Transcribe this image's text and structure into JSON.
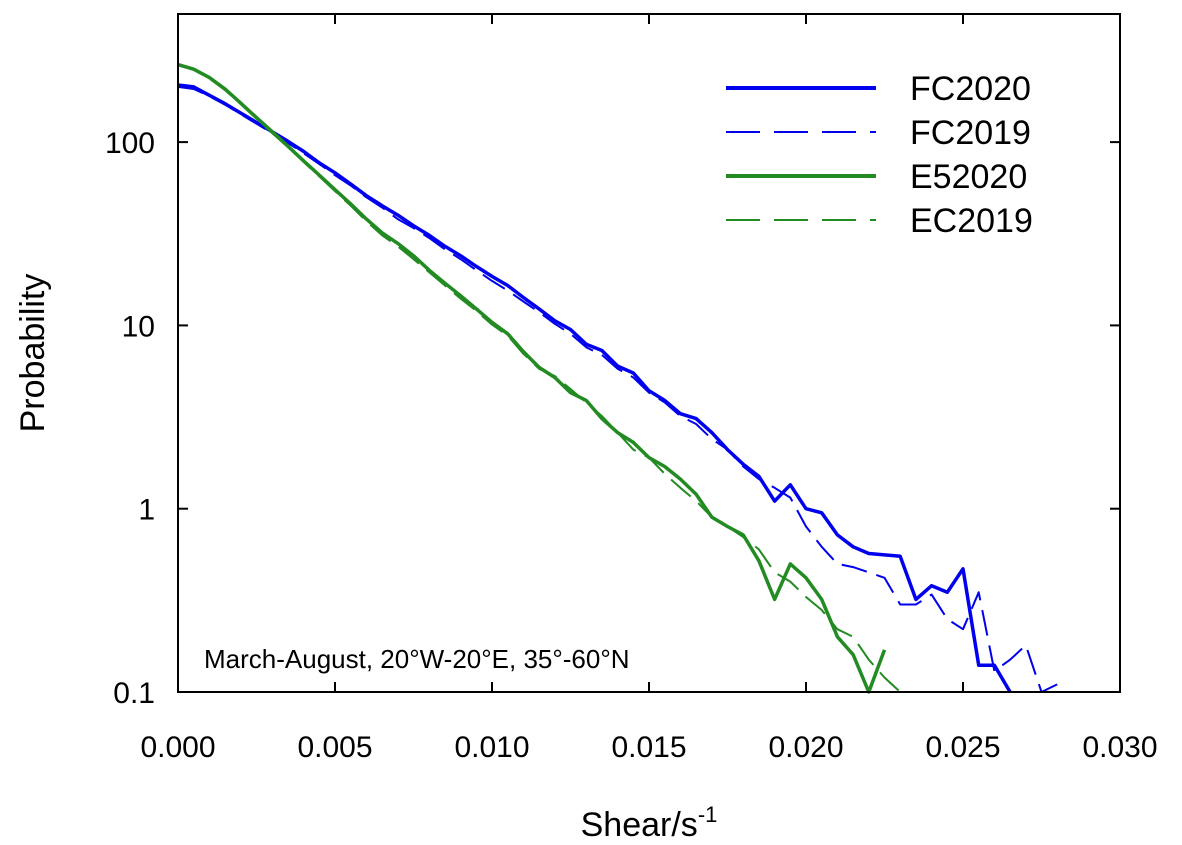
{
  "chart_data": {
    "type": "line",
    "xlabel": "Shear/s",
    "xlabel_superscript": "-1",
    "ylabel": "Probability",
    "annotation": "March-August, 20°W-20°E, 35°-60°N",
    "xlim": [
      0,
      0.03
    ],
    "ylim": [
      0.1,
      500
    ],
    "yscale": "log",
    "grid": false,
    "legend_position": "top-right",
    "x_ticks": [
      "0.000",
      "0.005",
      "0.010",
      "0.015",
      "0.020",
      "0.025",
      "0.030"
    ],
    "x_tick_values": [
      0,
      0.005,
      0.01,
      0.015,
      0.02,
      0.025,
      0.03
    ],
    "y_ticks": [
      "0.1",
      "1",
      "10",
      "100"
    ],
    "y_tick_values": [
      0.1,
      1,
      10,
      100
    ],
    "series": [
      {
        "name": "FC2020",
        "color": "#0000ee",
        "dash": "solid",
        "x": [
          0,
          0.0005,
          0.001,
          0.0015,
          0.002,
          0.0025,
          0.003,
          0.0035,
          0.004,
          0.0045,
          0.005,
          0.0055,
          0.006,
          0.0065,
          0.007,
          0.0075,
          0.008,
          0.0085,
          0.009,
          0.0095,
          0.01,
          0.0105,
          0.011,
          0.0115,
          0.012,
          0.0125,
          0.013,
          0.0135,
          0.014,
          0.0145,
          0.015,
          0.0155,
          0.016,
          0.0165,
          0.017,
          0.0175,
          0.018,
          0.0185,
          0.019,
          0.0195,
          0.02,
          0.0205,
          0.021,
          0.0215,
          0.022,
          0.0225,
          0.023,
          0.0235,
          0.024,
          0.0245,
          0.025,
          0.0255,
          0.026,
          0.0265
        ],
        "y": [
          205,
          200,
          180,
          162,
          144,
          128,
          114,
          101,
          89,
          77,
          68,
          59,
          51,
          45,
          40,
          35,
          31,
          27,
          24,
          21,
          18.5,
          16.5,
          14.2,
          12.3,
          10.6,
          9.5,
          7.9,
          7.3,
          6.0,
          5.5,
          4.4,
          3.9,
          3.3,
          3.1,
          2.6,
          2.1,
          1.75,
          1.5,
          1.1,
          1.35,
          1.0,
          0.95,
          0.72,
          0.62,
          0.57,
          0.56,
          0.55,
          0.32,
          0.38,
          0.35,
          0.47,
          0.14,
          0.14,
          0.1
        ]
      },
      {
        "name": "FC2019",
        "color": "#0000ee",
        "dash": "dashed",
        "x": [
          0,
          0.0005,
          0.001,
          0.0015,
          0.002,
          0.0025,
          0.003,
          0.0035,
          0.004,
          0.0045,
          0.005,
          0.0055,
          0.006,
          0.0065,
          0.007,
          0.0075,
          0.008,
          0.0085,
          0.009,
          0.0095,
          0.01,
          0.0105,
          0.011,
          0.0115,
          0.012,
          0.0125,
          0.013,
          0.0135,
          0.014,
          0.0145,
          0.015,
          0.0155,
          0.016,
          0.0165,
          0.017,
          0.0175,
          0.018,
          0.0185,
          0.019,
          0.0195,
          0.02,
          0.0205,
          0.021,
          0.0215,
          0.022,
          0.0225,
          0.023,
          0.0235,
          0.024,
          0.0245,
          0.025,
          0.0255,
          0.026,
          0.0265,
          0.027,
          0.0275,
          0.028
        ],
        "y": [
          200,
          195,
          178,
          160,
          142,
          126,
          112,
          99,
          87,
          76,
          66,
          58,
          50,
          44,
          38,
          34,
          30,
          26,
          23,
          20,
          17.5,
          15.5,
          13.5,
          11.8,
          10.2,
          9.0,
          7.6,
          6.9,
          5.8,
          5.2,
          4.3,
          3.8,
          3.2,
          2.9,
          2.4,
          2.1,
          1.7,
          1.45,
          1.3,
          1.15,
          0.8,
          0.62,
          0.5,
          0.48,
          0.45,
          0.42,
          0.3,
          0.3,
          0.34,
          0.25,
          0.22,
          0.35,
          0.13,
          0.15,
          0.18,
          0.1,
          0.11
        ]
      },
      {
        "name": "E52020",
        "color": "#228b22",
        "dash": "solid",
        "x": [
          0,
          0.0005,
          0.001,
          0.0015,
          0.002,
          0.0025,
          0.003,
          0.0035,
          0.004,
          0.0045,
          0.005,
          0.0055,
          0.006,
          0.0065,
          0.007,
          0.0075,
          0.008,
          0.0085,
          0.009,
          0.0095,
          0.01,
          0.0105,
          0.011,
          0.0115,
          0.012,
          0.0125,
          0.013,
          0.0135,
          0.014,
          0.0145,
          0.015,
          0.0155,
          0.016,
          0.0165,
          0.017,
          0.0175,
          0.018,
          0.0185,
          0.019,
          0.0195,
          0.02,
          0.0205,
          0.021,
          0.0215,
          0.022,
          0.0225
        ],
        "y": [
          265,
          250,
          225,
          195,
          163,
          136,
          114,
          95,
          79,
          66,
          55,
          46,
          38,
          32,
          28,
          24,
          20,
          17,
          14.5,
          12.3,
          10.4,
          9.0,
          7.2,
          5.9,
          5.2,
          4.3,
          3.9,
          3.1,
          2.6,
          2.3,
          1.9,
          1.7,
          1.45,
          1.2,
          0.9,
          0.8,
          0.72,
          0.52,
          0.32,
          0.5,
          0.42,
          0.32,
          0.2,
          0.16,
          0.1,
          0.17
        ]
      },
      {
        "name": "EC2019",
        "color": "#228b22",
        "dash": "dashed",
        "x": [
          0,
          0.0005,
          0.001,
          0.0015,
          0.002,
          0.0025,
          0.003,
          0.0035,
          0.004,
          0.0045,
          0.005,
          0.0055,
          0.006,
          0.0065,
          0.007,
          0.0075,
          0.008,
          0.0085,
          0.009,
          0.0095,
          0.01,
          0.0105,
          0.011,
          0.0115,
          0.012,
          0.0125,
          0.013,
          0.0135,
          0.014,
          0.0145,
          0.015,
          0.0155,
          0.016,
          0.0165,
          0.017,
          0.0175,
          0.018,
          0.0185,
          0.019,
          0.0195,
          0.02,
          0.0205,
          0.021,
          0.0215,
          0.022,
          0.0225,
          0.023,
          0.0235
        ],
        "y": [
          262,
          248,
          222,
          192,
          161,
          134,
          112,
          94,
          78,
          65,
          54,
          45,
          37,
          31,
          27,
          23,
          19.5,
          16.5,
          14,
          12,
          10.1,
          8.8,
          7.0,
          5.8,
          5.3,
          4.5,
          3.8,
          3.2,
          2.6,
          2.1,
          1.9,
          1.55,
          1.3,
          1.1,
          0.9,
          0.8,
          0.7,
          0.6,
          0.45,
          0.4,
          0.33,
          0.28,
          0.22,
          0.2,
          0.15,
          0.12,
          0.1,
          0.1
        ]
      }
    ]
  }
}
